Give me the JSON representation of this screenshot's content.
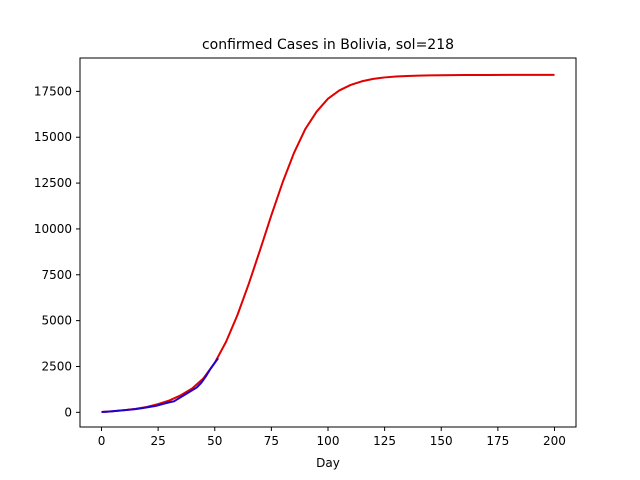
{
  "chart_data": {
    "type": "line",
    "title": "confirmed Cases in Bolivia, sol=218",
    "xlabel": "Day",
    "ylabel": "",
    "xlim": [
      -9.5,
      209.5
    ],
    "ylim": [
      -800,
      19320
    ],
    "xticks": [
      0,
      25,
      50,
      75,
      100,
      125,
      150,
      175,
      200
    ],
    "yticks": [
      0,
      2500,
      5000,
      7500,
      10000,
      12500,
      15000,
      17500
    ],
    "grid": false,
    "series": [
      {
        "color": "#e00000",
        "x": [
          0,
          5,
          10,
          15,
          20,
          25,
          30,
          35,
          40,
          45,
          50,
          55,
          60,
          65,
          70,
          75,
          80,
          85,
          90,
          95,
          100,
          105,
          110,
          115,
          120,
          125,
          130,
          135,
          140,
          145,
          150,
          160,
          170,
          180,
          190,
          200
        ],
        "values": [
          20,
          60,
          115,
          190,
          290,
          450,
          650,
          930,
          1300,
          1850,
          2700,
          3850,
          5300,
          7000,
          8850,
          10750,
          12550,
          14150,
          15450,
          16400,
          17100,
          17550,
          17850,
          18050,
          18180,
          18260,
          18310,
          18340,
          18360,
          18370,
          18380,
          18390,
          18395,
          18398,
          18399,
          18400
        ]
      },
      {
        "color": "#2200cc",
        "x": [
          0,
          3,
          6,
          9,
          12,
          15,
          18,
          21,
          24,
          27,
          30,
          32,
          34,
          36,
          38,
          40,
          42,
          44,
          46,
          48,
          50,
          51.5
        ],
        "values": [
          20,
          40,
          75,
          110,
          140,
          175,
          230,
          290,
          350,
          450,
          550,
          600,
          750,
          900,
          1050,
          1200,
          1350,
          1600,
          1950,
          2350,
          2700,
          2950
        ]
      }
    ]
  }
}
